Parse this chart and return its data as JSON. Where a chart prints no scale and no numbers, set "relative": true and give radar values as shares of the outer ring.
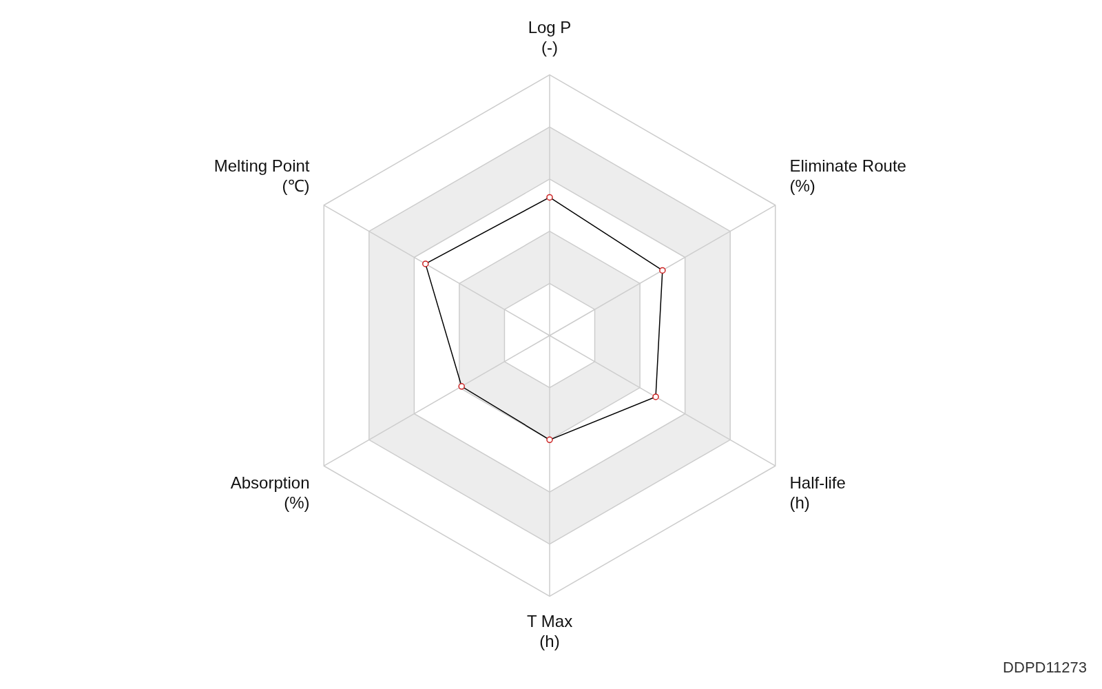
{
  "chart_data": {
    "type": "radar",
    "relative": true,
    "categories": [
      "Log P\n(-)",
      "Eliminate Route\n(%)",
      "Half-life\n(h)",
      "T Max\n(h)",
      "Absorption\n(%)",
      "Melting Point\n(℃)"
    ],
    "series": [
      {
        "color": "#000000",
        "values": [
          0.53,
          0.5,
          0.47,
          0.4,
          0.39,
          0.55
        ]
      }
    ],
    "marker": "circle",
    "grid": true,
    "legend": false,
    "annotations": [
      "DDPD11273"
    ]
  }
}
